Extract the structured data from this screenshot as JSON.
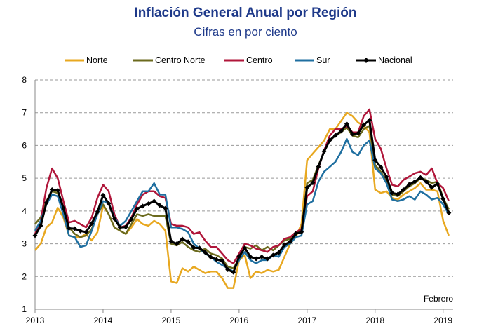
{
  "chart_data": {
    "type": "line",
    "title": "Inflación General Anual por Región",
    "subtitle": "Cifras en por ciento",
    "annotation": "Febrero",
    "xlabel": "",
    "ylabel": "",
    "x_start": "2013-01",
    "x_end": "2019-02",
    "frequency": "monthly",
    "xticks": [
      "2013",
      "2014",
      "2015",
      "2016",
      "2017",
      "2018",
      "2019"
    ],
    "ylim": [
      1,
      8
    ],
    "yticks": [
      1,
      2,
      3,
      4,
      5,
      6,
      7,
      8
    ],
    "grid": true,
    "legend_position": "top",
    "series": [
      {
        "name": "Norte",
        "color": "#e8a820",
        "markers": false,
        "values": [
          2.8,
          3.0,
          3.5,
          3.65,
          4.1,
          3.8,
          3.25,
          3.2,
          3.2,
          3.3,
          3.1,
          3.35,
          4.15,
          3.9,
          3.5,
          3.4,
          3.3,
          3.5,
          3.75,
          3.6,
          3.55,
          3.7,
          3.6,
          3.4,
          1.85,
          1.8,
          2.25,
          2.15,
          2.3,
          2.2,
          2.1,
          2.15,
          2.15,
          1.95,
          1.65,
          1.65,
          2.5,
          2.65,
          1.95,
          2.15,
          2.1,
          2.2,
          2.15,
          2.2,
          2.6,
          3.0,
          3.2,
          3.6,
          5.55,
          5.75,
          5.95,
          6.15,
          6.5,
          6.5,
          6.75,
          7.0,
          6.9,
          6.7,
          6.6,
          6.4,
          4.65,
          4.55,
          4.6,
          4.4,
          4.35,
          4.5,
          4.6,
          4.7,
          4.85,
          4.65,
          4.65,
          4.6,
          3.7,
          3.25
        ]
      },
      {
        "name": "Centro Norte",
        "color": "#6b6a1e",
        "markers": false,
        "values": [
          3.6,
          3.8,
          4.3,
          4.6,
          4.55,
          4.0,
          3.5,
          3.3,
          3.2,
          3.25,
          3.45,
          3.9,
          4.2,
          3.9,
          3.5,
          3.4,
          3.3,
          3.6,
          3.9,
          3.85,
          3.9,
          3.85,
          3.85,
          3.85,
          3.0,
          2.95,
          3.05,
          2.9,
          2.8,
          2.75,
          2.85,
          2.7,
          2.65,
          2.55,
          2.3,
          2.25,
          2.55,
          2.9,
          2.85,
          2.95,
          2.8,
          2.9,
          2.8,
          2.95,
          3.1,
          3.15,
          3.3,
          3.35,
          4.85,
          4.95,
          5.4,
          5.8,
          6.15,
          6.3,
          6.4,
          6.55,
          6.3,
          6.25,
          6.5,
          6.6,
          5.4,
          5.2,
          4.9,
          4.5,
          4.45,
          4.6,
          4.75,
          4.85,
          5.0,
          4.95,
          4.85,
          4.9,
          4.4,
          4.05
        ]
      },
      {
        "name": "Centro",
        "color": "#b0163a",
        "markers": false,
        "values": [
          3.3,
          3.7,
          4.7,
          5.3,
          5.0,
          4.3,
          3.65,
          3.7,
          3.6,
          3.5,
          3.8,
          4.4,
          4.8,
          4.6,
          3.9,
          3.5,
          3.55,
          3.8,
          4.2,
          4.5,
          4.6,
          4.6,
          4.45,
          4.4,
          3.6,
          3.55,
          3.55,
          3.5,
          3.3,
          3.35,
          3.1,
          2.9,
          2.9,
          2.7,
          2.5,
          2.4,
          2.7,
          3.0,
          2.95,
          2.85,
          2.8,
          2.75,
          2.9,
          2.95,
          3.15,
          3.2,
          3.35,
          3.45,
          4.45,
          4.6,
          5.3,
          5.85,
          6.3,
          6.5,
          6.5,
          6.6,
          6.4,
          6.4,
          6.9,
          7.1,
          6.2,
          5.9,
          5.3,
          4.8,
          4.75,
          4.95,
          5.05,
          5.15,
          5.2,
          5.1,
          5.3,
          4.85,
          4.7,
          4.3
        ]
      },
      {
        "name": "Sur",
        "color": "#1f6fa0",
        "markers": false,
        "values": [
          3.4,
          3.7,
          4.2,
          4.5,
          4.45,
          3.9,
          3.25,
          3.2,
          2.9,
          2.95,
          3.4,
          3.9,
          4.3,
          4.25,
          3.8,
          3.55,
          3.7,
          4.0,
          4.3,
          4.6,
          4.6,
          4.85,
          4.5,
          4.5,
          3.5,
          3.5,
          3.45,
          3.35,
          3.0,
          2.85,
          2.7,
          2.6,
          2.45,
          2.35,
          2.25,
          2.15,
          2.5,
          2.75,
          2.5,
          2.4,
          2.5,
          2.5,
          2.65,
          2.6,
          2.9,
          3.0,
          3.2,
          3.25,
          4.2,
          4.3,
          4.9,
          5.2,
          5.35,
          5.5,
          5.8,
          6.2,
          5.8,
          5.7,
          6.0,
          6.15,
          5.3,
          5.15,
          4.85,
          4.35,
          4.3,
          4.35,
          4.45,
          4.35,
          4.6,
          4.5,
          4.35,
          4.4,
          4.2,
          3.9
        ]
      },
      {
        "name": "Nacional",
        "color": "#000000",
        "markers": true,
        "values": [
          3.25,
          3.55,
          4.25,
          4.65,
          4.63,
          4.09,
          3.47,
          3.46,
          3.39,
          3.36,
          3.62,
          3.97,
          4.48,
          4.23,
          3.76,
          3.5,
          3.51,
          3.75,
          4.07,
          4.15,
          4.22,
          4.3,
          4.17,
          4.08,
          3.07,
          3.0,
          3.14,
          3.06,
          2.88,
          2.87,
          2.74,
          2.59,
          2.52,
          2.48,
          2.21,
          2.13,
          2.61,
          2.87,
          2.6,
          2.54,
          2.6,
          2.54,
          2.65,
          2.73,
          2.97,
          3.06,
          3.31,
          3.36,
          4.72,
          4.86,
          5.35,
          5.82,
          6.16,
          6.31,
          6.44,
          6.66,
          6.35,
          6.37,
          6.63,
          6.77,
          5.55,
          5.34,
          5.04,
          4.55,
          4.51,
          4.65,
          4.81,
          4.9,
          5.02,
          4.9,
          4.72,
          4.83,
          4.37,
          3.94
        ]
      }
    ]
  }
}
